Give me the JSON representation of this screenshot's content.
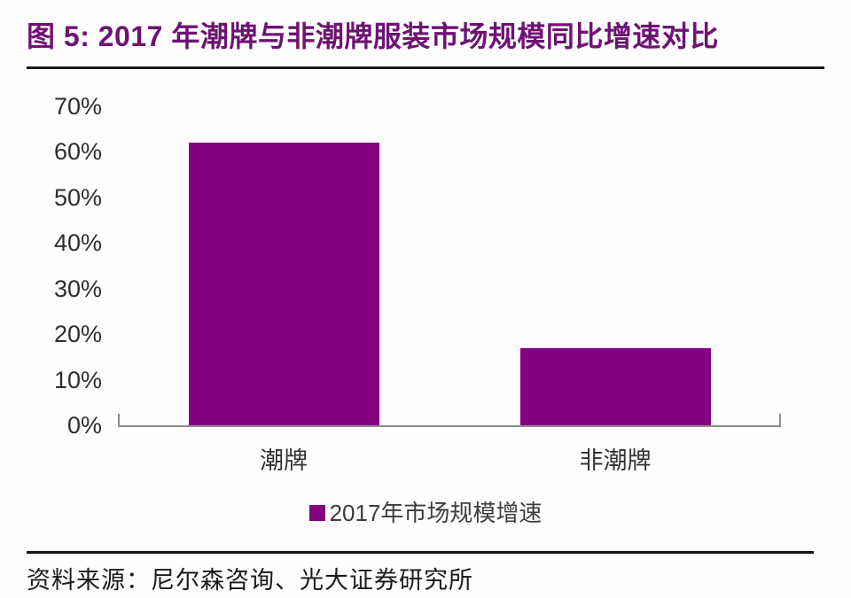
{
  "page": {
    "title": "图 5: 2017 年潮牌与非潮牌服装市场规模同比增速对比",
    "source": "资料来源：尼尔森咨询、光大证券研究所"
  },
  "colors": {
    "title_purple": "#6E1273",
    "bar_purple": "#850083",
    "axis_gray": "#8C8C8C",
    "label_dark": "#333333",
    "rule_black": "#1A1A1A"
  },
  "chart_data": {
    "type": "bar",
    "title": "图 5: 2017 年潮牌与非潮牌服装市场规模同比增速对比",
    "categories": [
      "潮牌",
      "非潮牌"
    ],
    "series": [
      {
        "name": "2017年市场规模增速",
        "values": [
          62,
          17
        ]
      }
    ],
    "xlabel": "",
    "ylabel": "",
    "ylim": [
      0,
      70
    ],
    "ytick_labels": [
      "0%",
      "10%",
      "20%",
      "30%",
      "40%",
      "50%",
      "60%",
      "70%"
    ],
    "grid": false,
    "legend_position": "bottom-center",
    "bar_color": "#850083"
  },
  "legend": {
    "label": "2017年市场规模增速",
    "swatch_color": "#850083"
  }
}
